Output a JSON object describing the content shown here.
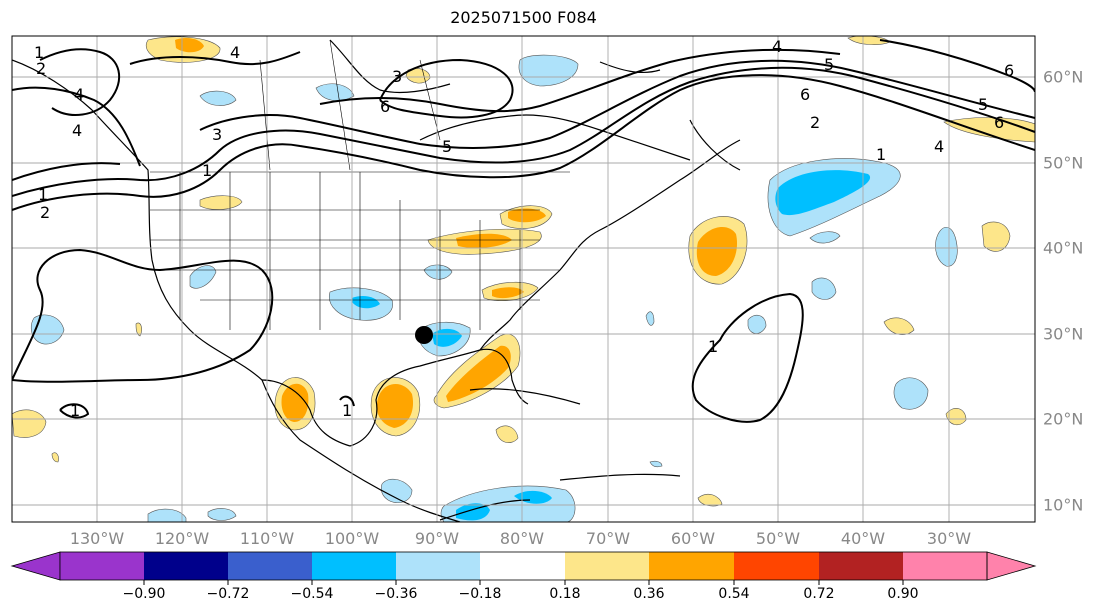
{
  "title": "2025071500 F084",
  "longitude_labels": [
    "130°W",
    "120°W",
    "110°W",
    "100°W",
    "90°W",
    "80°W",
    "70°W",
    "60°W",
    "50°W",
    "40°W",
    "30°W"
  ],
  "latitude_labels": [
    "60°N",
    "50°N",
    "40°N",
    "30°N",
    "20°N",
    "10°N"
  ],
  "colorbar": {
    "tick_labels": [
      "−0.90",
      "−0.72",
      "−0.54",
      "−0.36",
      "−0.18",
      "0.18",
      "0.36",
      "0.54",
      "0.72",
      "0.90"
    ],
    "colors": [
      "#9a34cc",
      "#00008b",
      "#3a5fcd",
      "#00bfff",
      "#aee2fa",
      "#ffffff",
      "#fde68a",
      "#ffa500",
      "#ff4500",
      "#b22222",
      "#ff82ab"
    ]
  },
  "contour_labels": [
    {
      "text": "1"
    },
    {
      "text": "2"
    },
    {
      "text": "4"
    },
    {
      "text": "4"
    },
    {
      "text": "3"
    },
    {
      "text": "1"
    },
    {
      "text": "1"
    },
    {
      "text": "2"
    },
    {
      "text": "3"
    },
    {
      "text": "6"
    },
    {
      "text": "5"
    },
    {
      "text": "4"
    },
    {
      "text": "5"
    },
    {
      "text": "6"
    },
    {
      "text": "6"
    },
    {
      "text": "5"
    },
    {
      "text": "6"
    },
    {
      "text": "4"
    },
    {
      "text": "2"
    },
    {
      "text": "1"
    },
    {
      "text": "1"
    },
    {
      "text": "1"
    },
    {
      "text": "1"
    },
    {
      "text": "4"
    }
  ],
  "colors": {
    "land_outline": "#000000",
    "grid": "#aaaaaa",
    "contour": "#000000",
    "tick_label": "#888888"
  }
}
